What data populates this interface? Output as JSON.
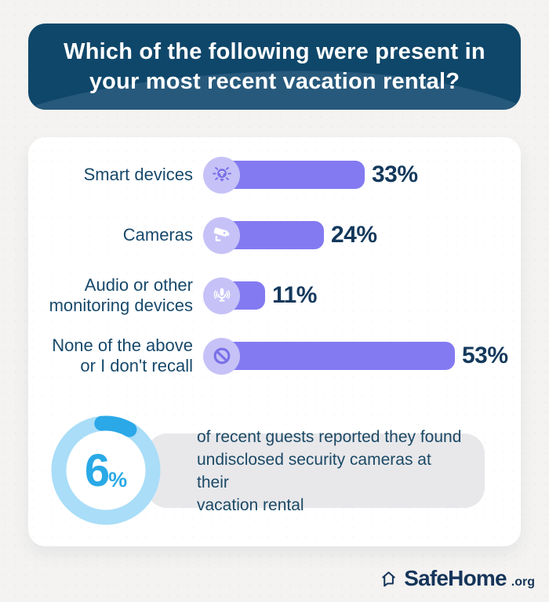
{
  "header": {
    "title": "Which of the following were present in\nyour most recent vacation rental?",
    "bg_color": "#0F476A",
    "text_color": "#FFFFFF"
  },
  "chart_data": {
    "type": "bar",
    "orientation": "horizontal",
    "title": "Which of the following were present in your most recent vacation rental?",
    "categories": [
      "Smart devices",
      "Cameras",
      "Audio or other\nmonitoring devices",
      "None of the above\nor I don't recall"
    ],
    "values": [
      33,
      24,
      11,
      53
    ],
    "value_labels": [
      "33%",
      "24%",
      "11%",
      "53%"
    ],
    "unit": "%",
    "xlim": [
      0,
      60
    ],
    "icons": [
      "smart-bulb-icon",
      "security-camera-icon",
      "microphone-icon",
      "prohibition-icon"
    ],
    "bar_color": "#837AF1",
    "icon_circle_color": "#C6C2F7",
    "label_color": "#17496B",
    "value_color": "#14395C",
    "grid": false,
    "legend": false
  },
  "highlight": {
    "value": "6",
    "unit": "%",
    "donut_percent": 6,
    "text": "of recent guests reported they found\nundisclosed security cameras at their\nvacation rental",
    "ring_color": "#A9DDF8",
    "segment_color": "#2BA8E8",
    "value_color": "#29A9E6",
    "box_bg_color": "#E8E8EB",
    "text_color": "#1B4965"
  },
  "footer": {
    "brand": "SafeHome",
    "suffix": ".org",
    "color": "#16355A"
  }
}
